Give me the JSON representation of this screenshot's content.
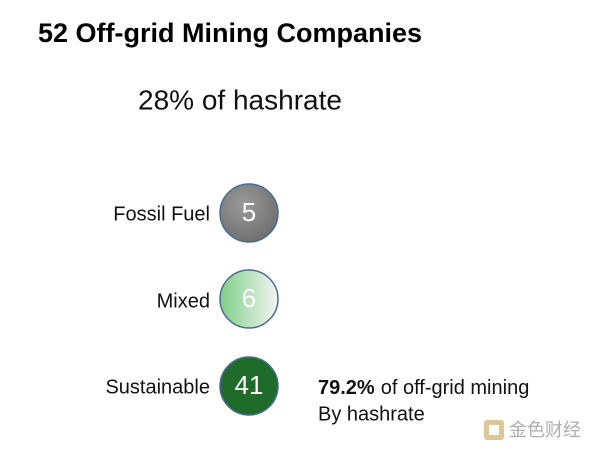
{
  "header": {
    "title": "52 Off-grid Mining Companies",
    "subtitle": "28% of hashrate"
  },
  "items": [
    {
      "label": "Fossil Fuel",
      "count": "5"
    },
    {
      "label": "Mixed",
      "count": "6"
    },
    {
      "label": "Sustainable",
      "count": "41"
    }
  ],
  "note": {
    "highlight": "79.2%",
    "text": "of off-grid mining",
    "line2": "By hashrate"
  },
  "watermark": "金色财经"
}
